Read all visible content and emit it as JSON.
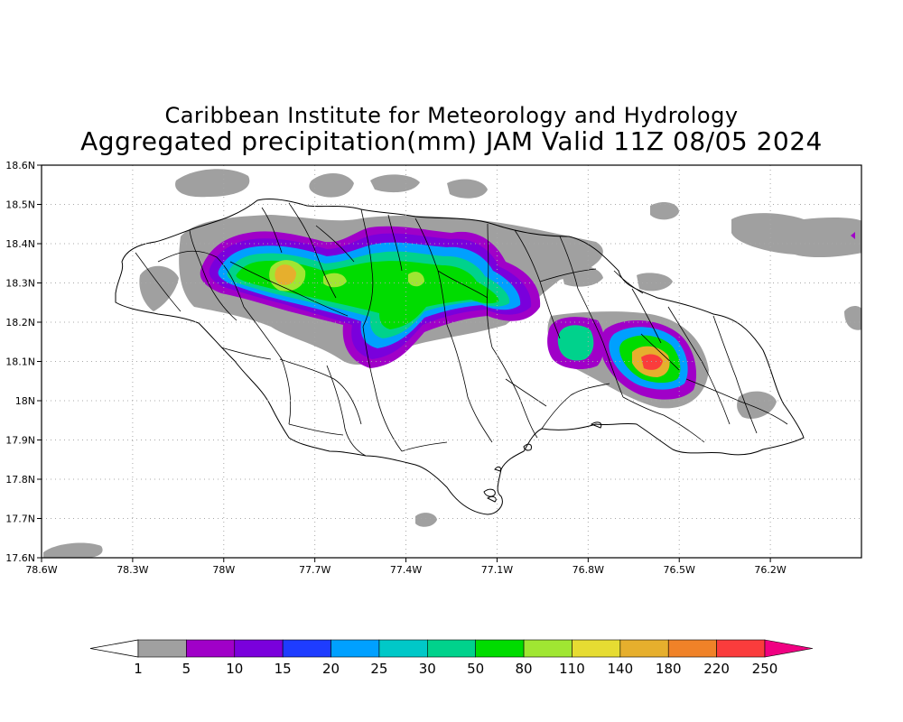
{
  "header": {
    "title": "Caribbean Institute for Meteorology and Hydrology",
    "subtitle": "Aggregated precipitation(mm) JAM Valid 11Z 08/05 2024"
  },
  "map": {
    "x_ticks": [
      "78.6W",
      "78.3W",
      "78W",
      "77.7W",
      "77.4W",
      "77.1W",
      "76.8W",
      "76.5W",
      "76.2W"
    ],
    "y_ticks": [
      "17.6N",
      "17.7N",
      "17.8N",
      "17.9N",
      "18N",
      "18.1N",
      "18.2N",
      "18.3N",
      "18.4N",
      "18.5N",
      "18.6N"
    ]
  },
  "legend": {
    "labels": [
      "1",
      "5",
      "10",
      "15",
      "20",
      "25",
      "30",
      "50",
      "80",
      "110",
      "140",
      "180",
      "220",
      "250"
    ],
    "colors": [
      "#a0a0a0",
      "#a000c8",
      "#7a00dc",
      "#1e3cff",
      "#00a0ff",
      "#00c8c8",
      "#00d28c",
      "#00dc00",
      "#a0e632",
      "#e6dc32",
      "#e6af2d",
      "#f08228",
      "#fa3c3c",
      "#f00082"
    ]
  },
  "colors": {
    "trace": "#a0a0a0",
    "rain_5": "#a000c8",
    "rain_10": "#7a00dc",
    "rain_20": "#00a0ff",
    "rain_30": "#00d28c",
    "rain_50": "#00dc00",
    "rain_80": "#a0e632",
    "rain_140": "#e6af2d",
    "rain_220": "#fa3c3c"
  }
}
